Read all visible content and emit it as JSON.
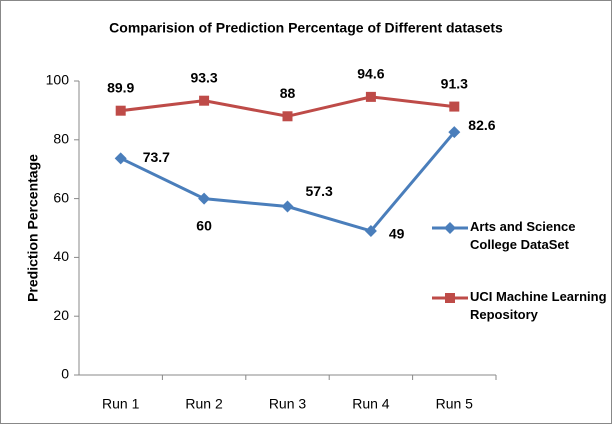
{
  "chart_data": {
    "type": "line",
    "title": "Comparision of Prediction Percentage of Different datasets",
    "y_label": "Prediction Percentage",
    "categories": [
      "Run 1",
      "Run 2",
      "Run 3",
      "Run 4",
      "Run 5"
    ],
    "series": [
      {
        "name": "Arts and Science College DataSet",
        "color": "#4a7ebb",
        "marker": "diamond",
        "values": [
          73.7,
          60,
          57.3,
          49,
          82.6
        ]
      },
      {
        "name": "UCI Machine Learning Repository",
        "color": "#be4b48",
        "marker": "square",
        "values": [
          89.9,
          93.3,
          88,
          94.6,
          91.3
        ]
      }
    ],
    "ylim": [
      0,
      100
    ],
    "yticks": [
      0,
      20,
      40,
      60,
      80,
      100
    ],
    "grid": false,
    "legend": "right"
  }
}
